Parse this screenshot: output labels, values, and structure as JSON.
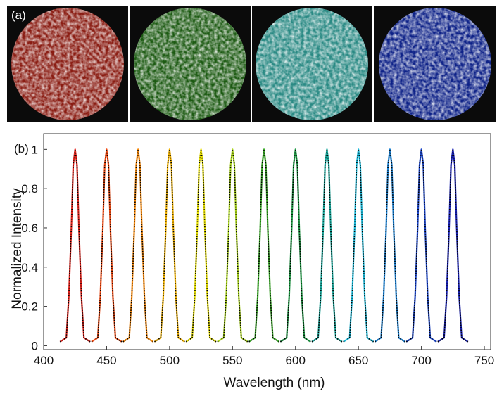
{
  "figure": {
    "panel_a_label": "(a)"
  },
  "chart_data": {
    "type": "line",
    "panel_label": "(b)",
    "x_label": "Wavelength (nm)",
    "y_label": "Normalized Intensity",
    "xlim": [
      400,
      755
    ],
    "ylim": [
      -0.02,
      1.08
    ],
    "xticks": [
      400,
      450,
      500,
      550,
      600,
      650,
      700,
      750
    ],
    "yticks": [
      0,
      0.2,
      0.4,
      0.6,
      0.8,
      1
    ],
    "fit_overlay": true,
    "series": [
      {
        "color": "#e3231b",
        "x": [
          413,
          418,
          420,
          422,
          423.5,
          425,
          426.5,
          428,
          430,
          432,
          437
        ],
        "values": [
          0.02,
          0.04,
          0.25,
          0.6,
          0.92,
          1,
          0.92,
          0.6,
          0.25,
          0.04,
          0.02
        ]
      },
      {
        "color": "#f04a12",
        "x": [
          438,
          443,
          445,
          447,
          448.5,
          450,
          451.5,
          453,
          455,
          457,
          462
        ],
        "values": [
          0.02,
          0.04,
          0.25,
          0.6,
          0.92,
          1,
          0.92,
          0.6,
          0.25,
          0.04,
          0.02
        ]
      },
      {
        "color": "#f5870a",
        "x": [
          463,
          468,
          470,
          472,
          473.5,
          475,
          476.5,
          478,
          480,
          482,
          487
        ],
        "values": [
          0.02,
          0.04,
          0.25,
          0.6,
          0.92,
          1,
          0.92,
          0.6,
          0.25,
          0.04,
          0.02
        ]
      },
      {
        "color": "#f2b200",
        "x": [
          488,
          493,
          495,
          497,
          498.5,
          500,
          501.5,
          503,
          505,
          507,
          512
        ],
        "values": [
          0.02,
          0.04,
          0.25,
          0.6,
          0.92,
          1,
          0.92,
          0.6,
          0.25,
          0.04,
          0.02
        ]
      },
      {
        "color": "#e8e000",
        "x": [
          513,
          518,
          520,
          522,
          523.5,
          525,
          526.5,
          528,
          530,
          532,
          537
        ],
        "values": [
          0.02,
          0.04,
          0.25,
          0.6,
          0.92,
          1,
          0.92,
          0.6,
          0.25,
          0.04,
          0.02
        ]
      },
      {
        "color": "#a9d41a",
        "x": [
          538,
          543,
          545,
          547,
          548.5,
          550,
          551.5,
          553,
          555,
          557,
          562
        ],
        "values": [
          0.02,
          0.04,
          0.25,
          0.6,
          0.92,
          1,
          0.92,
          0.6,
          0.25,
          0.04,
          0.02
        ]
      },
      {
        "color": "#3caa2a",
        "x": [
          563,
          568,
          570,
          572,
          573.5,
          575,
          576.5,
          578,
          580,
          582,
          587
        ],
        "values": [
          0.02,
          0.04,
          0.25,
          0.6,
          0.92,
          1,
          0.92,
          0.6,
          0.25,
          0.04,
          0.02
        ]
      },
      {
        "color": "#1f9a45",
        "x": [
          588,
          593,
          595,
          597,
          598.5,
          600,
          601.5,
          603,
          605,
          607,
          612
        ],
        "values": [
          0.02,
          0.04,
          0.25,
          0.6,
          0.92,
          1,
          0.92,
          0.6,
          0.25,
          0.04,
          0.02
        ]
      },
      {
        "color": "#18a89c",
        "x": [
          613,
          618,
          620,
          622,
          623.5,
          625,
          626.5,
          628,
          630,
          632,
          637
        ],
        "values": [
          0.02,
          0.04,
          0.25,
          0.6,
          0.92,
          1,
          0.92,
          0.6,
          0.25,
          0.04,
          0.02
        ]
      },
      {
        "color": "#1ab8d8",
        "x": [
          638,
          643,
          645,
          647,
          648.5,
          650,
          651.5,
          653,
          655,
          657,
          662
        ],
        "values": [
          0.02,
          0.04,
          0.25,
          0.6,
          0.92,
          1,
          0.92,
          0.6,
          0.25,
          0.04,
          0.02
        ]
      },
      {
        "color": "#1a7fd0",
        "x": [
          663,
          668,
          670,
          672,
          673.5,
          675,
          676.5,
          678,
          680,
          682,
          687
        ],
        "values": [
          0.02,
          0.04,
          0.25,
          0.6,
          0.92,
          1,
          0.92,
          0.6,
          0.25,
          0.04,
          0.02
        ]
      },
      {
        "color": "#1a44c8",
        "x": [
          688,
          693,
          695,
          697,
          698.5,
          700,
          701.5,
          703,
          705,
          707,
          712
        ],
        "values": [
          0.02,
          0.04,
          0.25,
          0.6,
          0.92,
          1,
          0.92,
          0.6,
          0.25,
          0.04,
          0.02
        ]
      },
      {
        "color": "#1820b5",
        "x": [
          713,
          718,
          720,
          722,
          723.5,
          725,
          726.5,
          728,
          730,
          732,
          737
        ],
        "values": [
          0.02,
          0.04,
          0.25,
          0.6,
          0.92,
          1,
          0.92,
          0.6,
          0.25,
          0.04,
          0.02
        ]
      }
    ]
  }
}
